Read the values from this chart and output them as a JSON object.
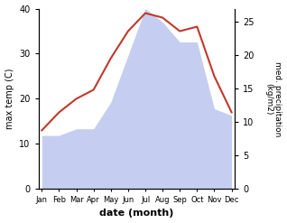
{
  "months": [
    "Jan",
    "Feb",
    "Mar",
    "Apr",
    "May",
    "Jun",
    "Jul",
    "Aug",
    "Sep",
    "Oct",
    "Nov",
    "Dec"
  ],
  "max_temp": [
    13,
    17,
    20,
    22,
    29,
    35,
    39,
    38,
    35,
    36,
    25,
    17
  ],
  "precipitation": [
    8,
    8,
    9,
    9,
    13,
    20,
    27,
    25,
    22,
    22,
    12,
    11
  ],
  "temp_color": "#c0392b",
  "precip_fill_color": "#c5cef0",
  "left_ylabel": "max temp (C)",
  "right_ylabel": "med. precipitation\n(kg/m2)",
  "xlabel": "date (month)",
  "ylim_left": [
    0,
    40
  ],
  "ylim_right": [
    0,
    27
  ],
  "bg_color": "#ffffff"
}
